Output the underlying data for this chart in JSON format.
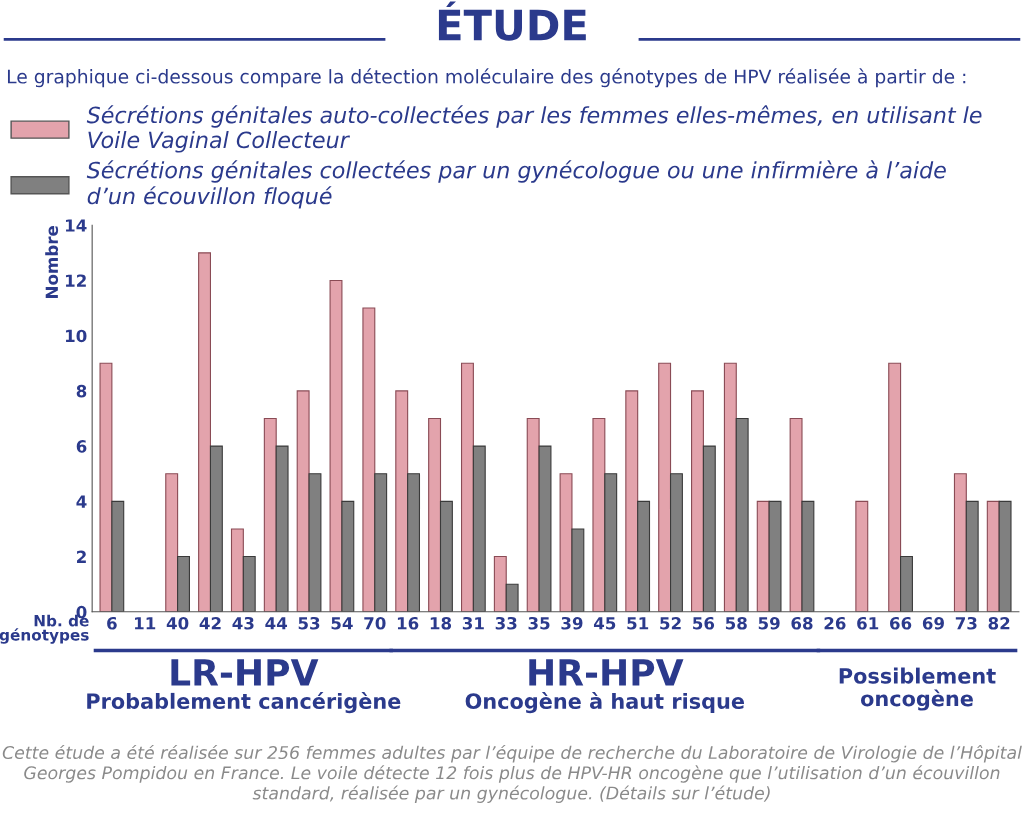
{
  "chart_data": {
    "type": "bar",
    "title": "ÉTUDE",
    "subtitle": "Le graphique ci-dessous compare la détection moléculaire des génotypes de HPV réalisée à partir de :",
    "xlabel": "Nb. de\ngénotypes",
    "ylabel": "Nombre",
    "categories": [
      "6",
      "11",
      "40",
      "42",
      "43",
      "44",
      "53",
      "54",
      "70",
      "16",
      "18",
      "31",
      "33",
      "35",
      "39",
      "45",
      "51",
      "52",
      "56",
      "58",
      "59",
      "68",
      "26",
      "61",
      "66",
      "69",
      "73",
      "82"
    ],
    "series": [
      {
        "name": "Sécrétions génitales auto-collectées par les femmes elles-mêmes, en utilisant le\nVoile Vaginal Collecteur",
        "color": "#e3a3ac",
        "values": [
          9,
          null,
          5,
          13,
          3,
          7,
          8,
          12,
          11,
          8,
          7,
          9,
          2,
          7,
          5,
          7,
          8,
          9,
          8,
          9,
          4,
          7,
          null,
          4,
          9,
          null,
          5,
          4
        ]
      },
      {
        "name": "Sécrétions génitales collectées par un gynécologue ou une infirmière à l’aide\nd’un écouvillon floqué",
        "color": "#808080",
        "values": [
          4,
          null,
          2,
          6,
          2,
          6,
          5,
          4,
          5,
          5,
          4,
          6,
          1,
          6,
          3,
          5,
          4,
          5,
          6,
          7,
          4,
          4,
          null,
          null,
          2,
          null,
          4,
          4
        ]
      }
    ],
    "ylim": [
      0,
      14
    ],
    "yticks": [
      0,
      2,
      4,
      6,
      8,
      10,
      12,
      14
    ],
    "grid": false,
    "legend": "top left",
    "annotations": [
      "LR-HPV",
      "Probablement cancérigène",
      "HR-HPV",
      "Oncogène à haut risque",
      "Possiblement\noncogène",
      "Cette étude a été réalisée sur 256 femmes adultes par l’équipe de recherche du Laboratoire de Virologie de l’Hôpital Georges Pompidou en France. Le voile détecte 12 fois plus de HPV-HR oncogène que l’utilisation d’un écouvillon standard, réalisée par un gynécologue. (Détails sur l’étude)"
    ]
  }
}
